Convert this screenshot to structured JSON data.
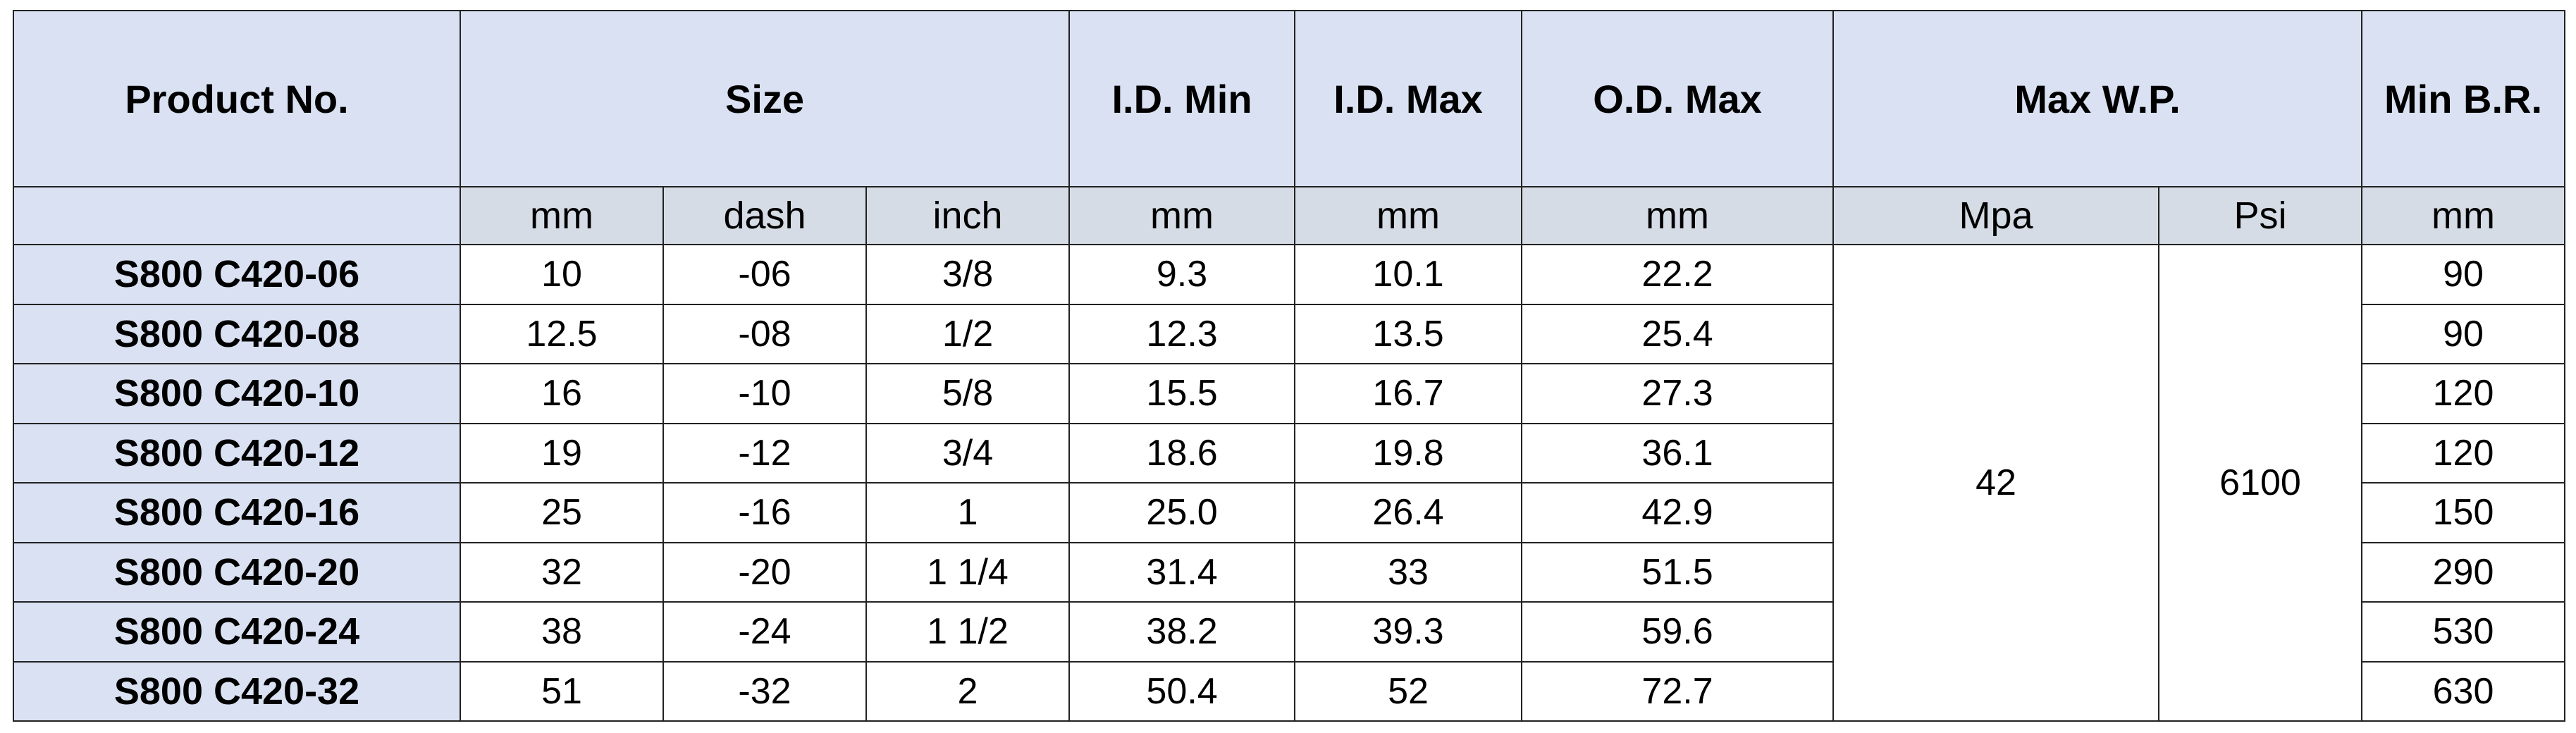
{
  "headers": {
    "product_no": "Product No.",
    "size": "Size",
    "id_min": "I.D. Min",
    "id_max": "I.D. Max",
    "od_max": "O.D. Max",
    "max_wp": "Max W.P.",
    "min_br": "Min B.R."
  },
  "units": {
    "size_mm": "mm",
    "size_dash": "dash",
    "size_inch": "inch",
    "id_min": "mm",
    "id_max": "mm",
    "od_max": "mm",
    "wp_mpa": "Mpa",
    "wp_psi": "Psi",
    "min_br": "mm"
  },
  "max_wp": {
    "mpa": "42",
    "psi": "6100"
  },
  "rows": [
    {
      "product": "S800 C420-06",
      "mm": "10",
      "dash": "-06",
      "inch": "3/8",
      "id_min": "9.3",
      "id_max": "10.1",
      "od_max": "22.2",
      "min_br": "90"
    },
    {
      "product": "S800 C420-08",
      "mm": "12.5",
      "dash": "-08",
      "inch": "1/2",
      "id_min": "12.3",
      "id_max": "13.5",
      "od_max": "25.4",
      "min_br": "90"
    },
    {
      "product": "S800 C420-10",
      "mm": "16",
      "dash": "-10",
      "inch": "5/8",
      "id_min": "15.5",
      "id_max": "16.7",
      "od_max": "27.3",
      "min_br": "120"
    },
    {
      "product": "S800 C420-12",
      "mm": "19",
      "dash": "-12",
      "inch": "3/4",
      "id_min": "18.6",
      "id_max": "19.8",
      "od_max": "36.1",
      "min_br": "120"
    },
    {
      "product": "S800 C420-16",
      "mm": "25",
      "dash": "-16",
      "inch": "1",
      "id_min": "25.0",
      "id_max": "26.4",
      "od_max": "42.9",
      "min_br": "150"
    },
    {
      "product": "S800 C420-20",
      "mm": "32",
      "dash": "-20",
      "inch": "1 1/4",
      "id_min": "31.4",
      "id_max": "33",
      "od_max": "51.5",
      "min_br": "290"
    },
    {
      "product": "S800 C420-24",
      "mm": "38",
      "dash": "-24",
      "inch": "1 1/2",
      "id_min": "38.2",
      "id_max": "39.3",
      "od_max": "59.6",
      "min_br": "530"
    },
    {
      "product": "S800 C420-32",
      "mm": "51",
      "dash": "-32",
      "inch": "2",
      "id_min": "50.4",
      "id_max": "52",
      "od_max": "72.7",
      "min_br": "630"
    }
  ]
}
